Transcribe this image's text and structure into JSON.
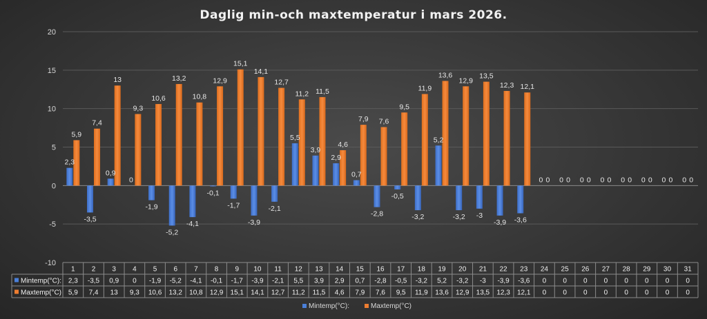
{
  "chart_data": {
    "type": "bar",
    "title": "Daglig min-och maxtemperatur i mars 2026.",
    "categories": [
      "1",
      "2",
      "3",
      "4",
      "5",
      "6",
      "7",
      "8",
      "9",
      "10",
      "11",
      "12",
      "13",
      "14",
      "15",
      "16",
      "17",
      "18",
      "19",
      "20",
      "21",
      "22",
      "23",
      "24",
      "25",
      "26",
      "27",
      "28",
      "29",
      "30",
      "31"
    ],
    "series": [
      {
        "name": "Mintemp(°C):",
        "color": "#4a7fd8",
        "values": [
          2.3,
          -3.5,
          0.9,
          0,
          -1.9,
          -5.2,
          -4.1,
          -0.1,
          -1.7,
          -3.9,
          -2.1,
          5.5,
          3.9,
          2.9,
          0.7,
          -2.8,
          -0.5,
          -3.2,
          5.2,
          -3.2,
          -3,
          -3.9,
          -3.6,
          0,
          0,
          0,
          0,
          0,
          0,
          0,
          0
        ],
        "labels": [
          "2,3",
          "-3,5",
          "0,9",
          "0",
          "-1,9",
          "-5,2",
          "-4,1",
          "-0,1",
          "-1,7",
          "-3,9",
          "-2,1",
          "5,5",
          "3,9",
          "2,9",
          "0,7",
          "-2,8",
          "-0,5",
          "-3,2",
          "5,2",
          "-3,2",
          "-3",
          "-3,9",
          "-3,6",
          "0",
          "0",
          "0",
          "0",
          "0",
          "0",
          "0",
          "0"
        ]
      },
      {
        "name": "Maxtemp(°C)",
        "color": "#ed7d31",
        "values": [
          5.9,
          7.4,
          13,
          9.3,
          10.6,
          13.2,
          10.8,
          12.9,
          15.1,
          14.1,
          12.7,
          11.2,
          11.5,
          4.6,
          7.9,
          7.6,
          9.5,
          11.9,
          13.6,
          12.9,
          13.5,
          12.3,
          12.1,
          0,
          0,
          0,
          0,
          0,
          0,
          0,
          0
        ],
        "labels": [
          "5,9",
          "7,4",
          "13",
          "9,3",
          "10,6",
          "13,2",
          "10,8",
          "12,9",
          "15,1",
          "14,1",
          "12,7",
          "11,2",
          "11,5",
          "4,6",
          "7,9",
          "7,6",
          "9,5",
          "11,9",
          "13,6",
          "12,9",
          "13,5",
          "12,3",
          "12,1",
          "0",
          "0",
          "0",
          "0",
          "0",
          "0",
          "0",
          "0"
        ]
      }
    ],
    "ylim": [
      -10,
      20
    ],
    "yticks": [
      -10,
      -5,
      0,
      5,
      10,
      15,
      20
    ],
    "grid": true,
    "legend": "bottom",
    "data_table": true
  }
}
